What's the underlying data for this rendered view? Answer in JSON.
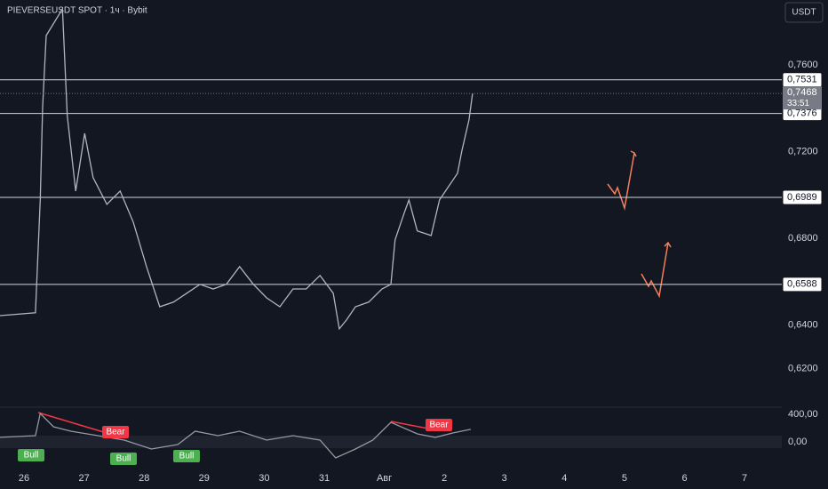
{
  "header": {
    "title": "PIEVERSEUSDT SPOT · 1ч · Bybit",
    "currency": "USDT"
  },
  "chart_data": [
    {
      "type": "line",
      "color": "#b2b5be",
      "x": [
        -0.4,
        0.19,
        0.27,
        0.31,
        0.37,
        0.64,
        0.72,
        0.86,
        1.01,
        1.15,
        1.38,
        1.6,
        1.82,
        2.04,
        2.26,
        2.49,
        2.71,
        2.93,
        3.15,
        3.37,
        3.59,
        3.82,
        4.04,
        4.26,
        4.48,
        4.7,
        4.93,
        5.15,
        5.25,
        5.37,
        5.52,
        5.74,
        5.96,
        6.11,
        6.18,
        6.33,
        6.41,
        6.55,
        6.78,
        6.92,
        7.07,
        7.22,
        7.29,
        7.41,
        7.47
      ],
      "values": [
        0.6444,
        0.6457,
        0.6977,
        0.7407,
        0.7735,
        0.7858,
        0.7366,
        0.7018,
        0.7284,
        0.708,
        0.6957,
        0.7018,
        0.6875,
        0.667,
        0.6485,
        0.6506,
        0.6547,
        0.6588,
        0.6567,
        0.6588,
        0.667,
        0.6588,
        0.6526,
        0.6485,
        0.6567,
        0.6567,
        0.6629,
        0.6547,
        0.6383,
        0.6424,
        0.6485,
        0.6506,
        0.6567,
        0.6588,
        0.6793,
        0.6916,
        0.6977,
        0.6834,
        0.6813,
        0.6977,
        0.7039,
        0.71,
        0.7202,
        0.7346,
        0.7468
      ],
      "xlim": [
        -0.4,
        12.62
      ],
      "xticks": [
        {
          "value": 0,
          "label": "26"
        },
        {
          "value": 1,
          "label": "27"
        },
        {
          "value": 2,
          "label": "28"
        },
        {
          "value": 3,
          "label": "29"
        },
        {
          "value": 4,
          "label": "30"
        },
        {
          "value": 5,
          "label": "31"
        },
        {
          "value": 6,
          "label": "Авг"
        },
        {
          "value": 7,
          "label": "2"
        },
        {
          "value": 8,
          "label": "3"
        },
        {
          "value": 9,
          "label": "4"
        },
        {
          "value": 10,
          "label": "5"
        },
        {
          "value": 11,
          "label": "6"
        },
        {
          "value": 12,
          "label": "7"
        }
      ],
      "ylim": [
        0.6034,
        0.7899
      ],
      "yticks": [
        {
          "value": 0.76,
          "label": "0,7600"
        },
        {
          "value": 0.72,
          "label": "0,7200"
        },
        {
          "value": 0.68,
          "label": "0,6800"
        },
        {
          "value": 0.64,
          "label": "0,6400"
        },
        {
          "value": 0.62,
          "label": "0,6200"
        }
      ],
      "levels": [
        {
          "value": 0.7531,
          "label": "0,7531"
        },
        {
          "value": 0.7376,
          "label": "0,7376"
        },
        {
          "value": 0.6989,
          "label": "0,6989"
        },
        {
          "value": 0.6588,
          "label": "0,6588"
        }
      ],
      "last_price": {
        "value": 0.7468,
        "label": "0,7468"
      },
      "countdown": "33:51"
    },
    {
      "type": "line",
      "color": "#9598a1",
      "x": [
        -0.4,
        0.19,
        0.27,
        0.49,
        0.78,
        1.23,
        1.67,
        2.12,
        2.56,
        2.85,
        3.23,
        3.59,
        4.04,
        4.48,
        4.93,
        5.19,
        5.52,
        5.81,
        6.11,
        6.55,
        6.85,
        7.14,
        7.44
      ],
      "values": [
        65,
        90,
        413,
        219,
        155,
        90,
        26,
        -103,
        -39,
        155,
        90,
        155,
        26,
        90,
        26,
        -232,
        -103,
        26,
        284,
        116,
        65,
        129,
        181
      ],
      "ylim": [
        -297,
        477
      ],
      "yticks": [
        {
          "value": 400,
          "label": "400,00"
        },
        {
          "value": 0,
          "label": "0,00"
        }
      ],
      "annotations": [
        "Bull",
        "Bear",
        "Bull",
        "Bull",
        "Bear"
      ]
    }
  ]
}
